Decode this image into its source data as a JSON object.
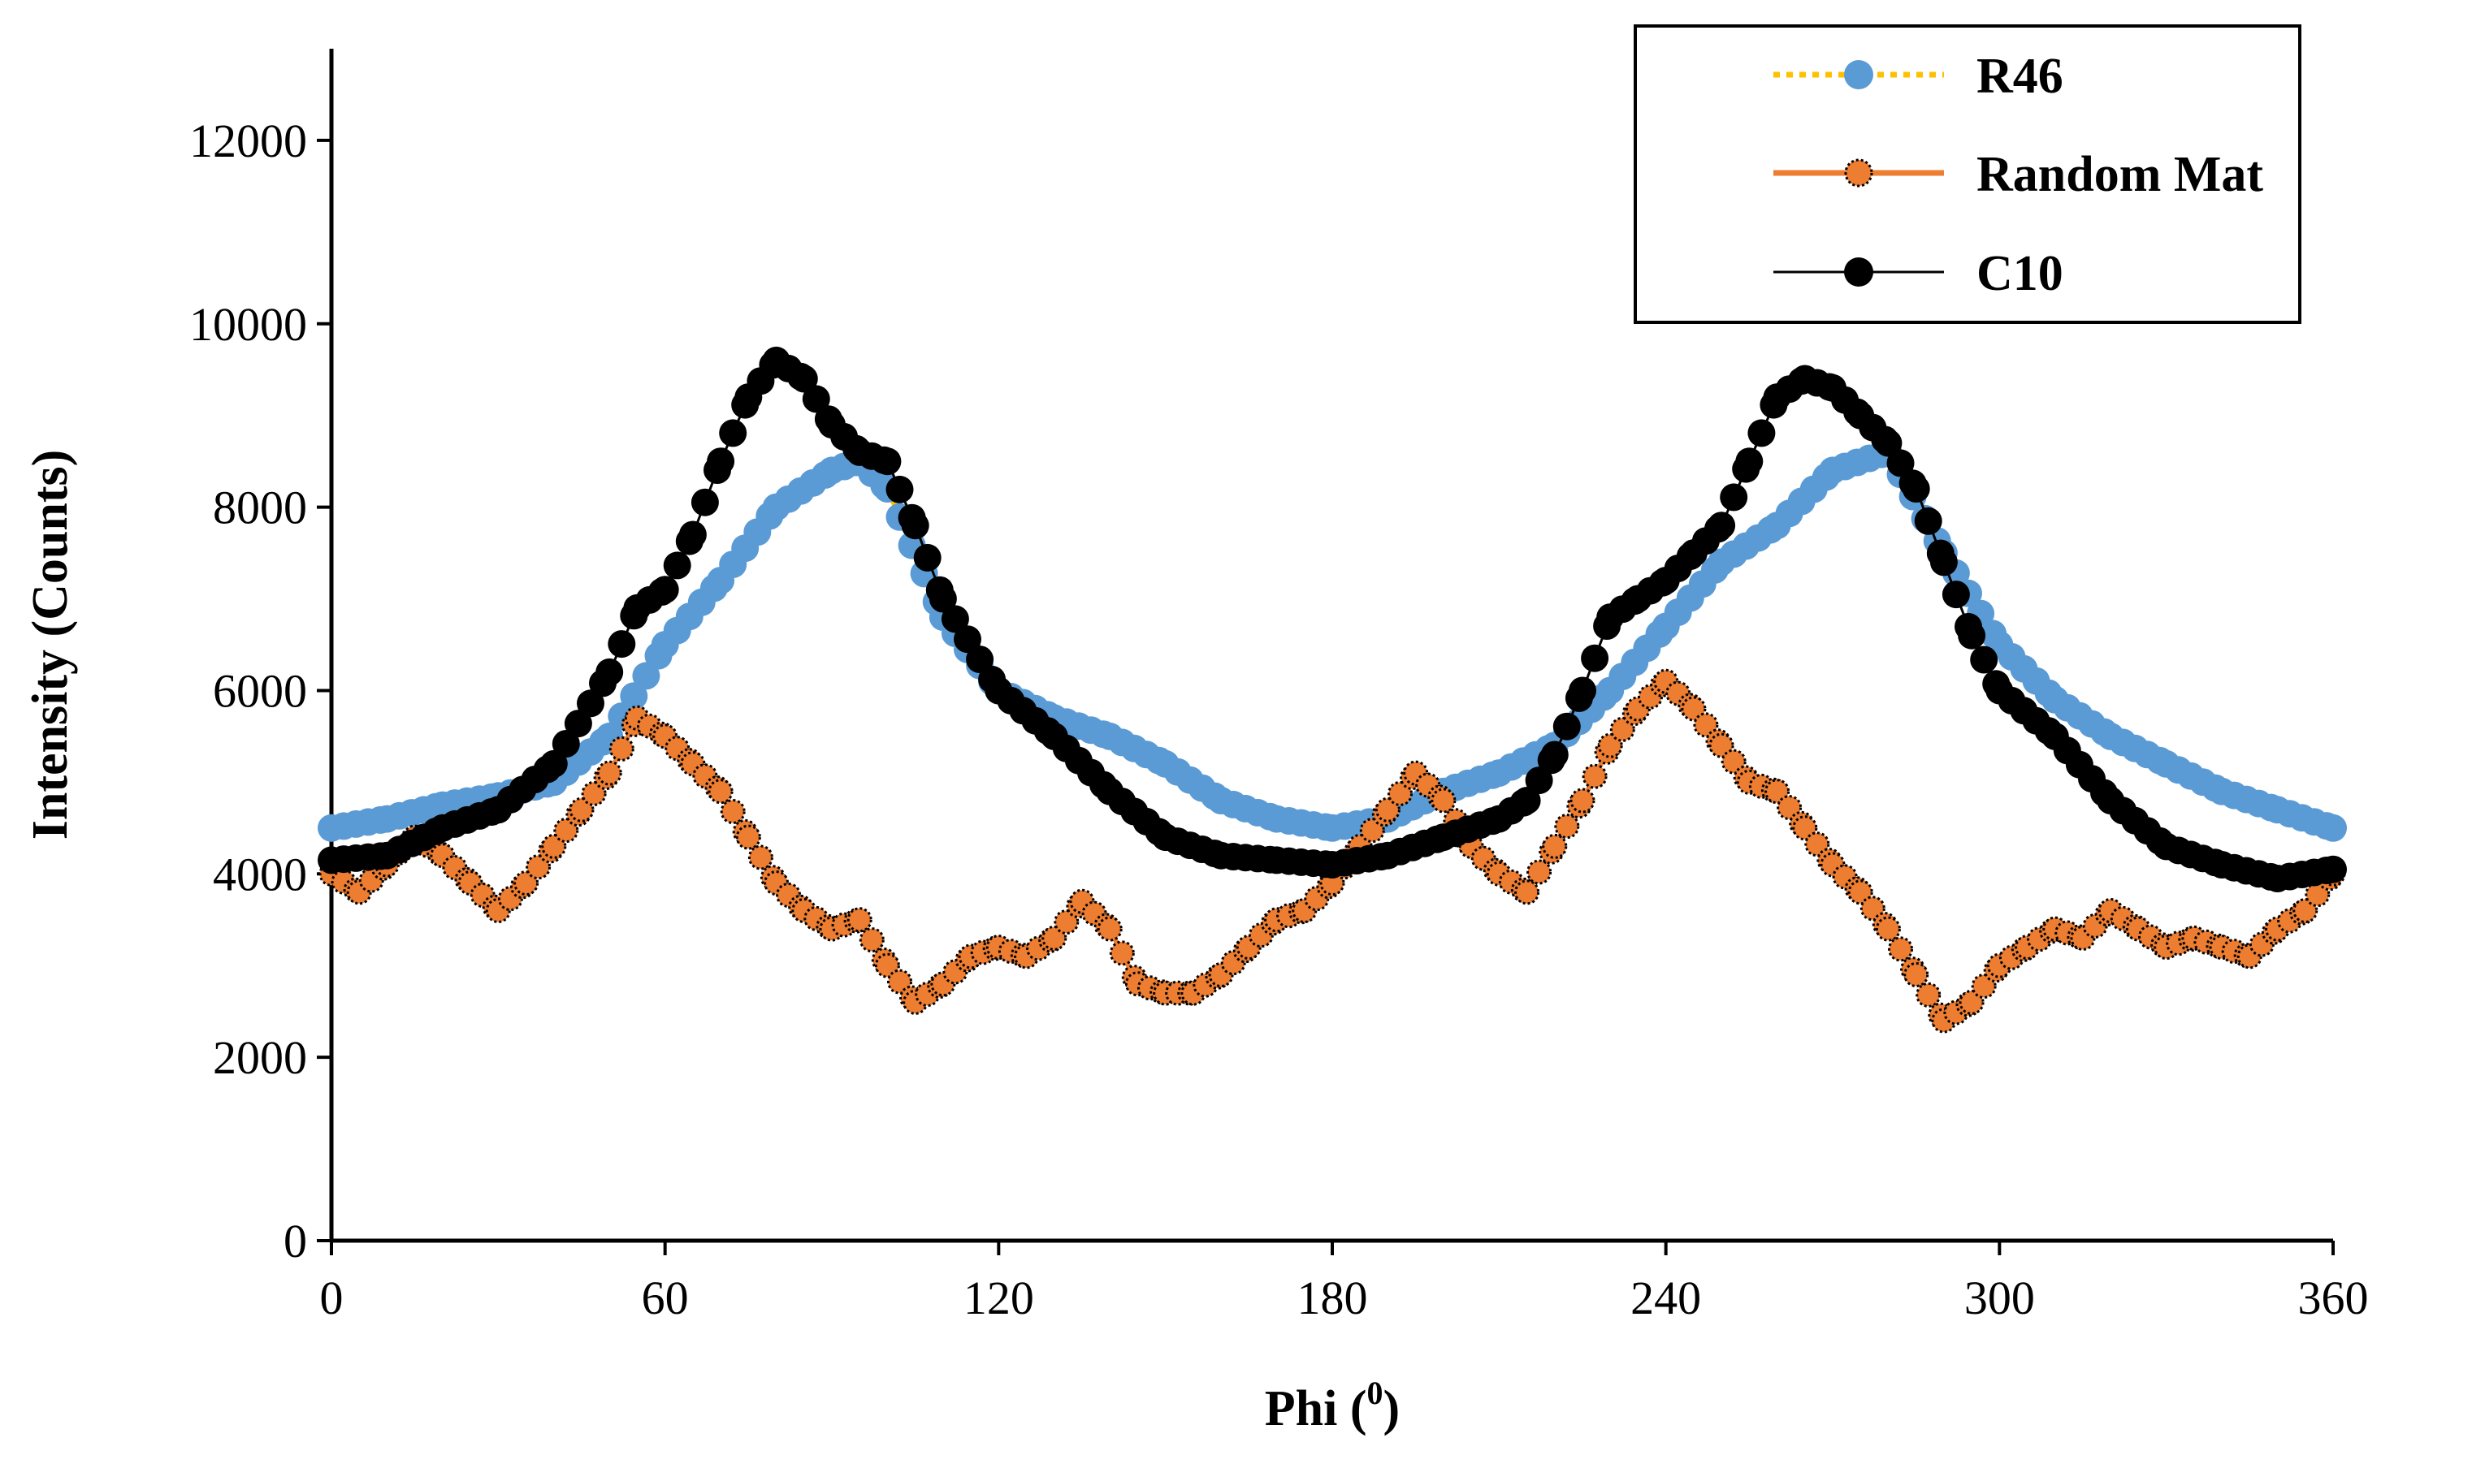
{
  "chart_data": {
    "type": "scatter",
    "title": "",
    "xlabel": "Phi (",
    "xlabel_sup": "0",
    "xlabel_end": ")",
    "ylabel": "Intensity (Counts)",
    "xlim": [
      0,
      360
    ],
    "ylim": [
      0,
      13000
    ],
    "xticks": [
      0,
      60,
      120,
      180,
      240,
      300,
      360
    ],
    "yticks": [
      0,
      2000,
      4000,
      6000,
      8000,
      10000,
      12000
    ],
    "xtick_labels": [
      "0",
      "60",
      "120",
      "180",
      "240",
      "300",
      "360"
    ],
    "ytick_labels": [
      "0",
      "2000",
      "4000",
      "6000",
      "8000",
      "10000",
      "12000"
    ],
    "grid": false,
    "legend_position": "top-right",
    "series": [
      {
        "name": "R46",
        "marker_color": "#5B9BD5",
        "line_color": "#FFC000",
        "line_style": "dotted",
        "marker_edge": "#5B9BD5",
        "x": [
          0,
          10,
          20,
          30,
          40,
          50,
          60,
          70,
          80,
          90,
          95,
          100,
          110,
          120,
          130,
          140,
          150,
          160,
          170,
          180,
          190,
          200,
          210,
          220,
          230,
          240,
          250,
          260,
          270,
          280,
          290,
          300,
          310,
          320,
          330,
          340,
          350,
          360
        ],
        "y": [
          4500,
          4600,
          4750,
          4850,
          5000,
          5500,
          6500,
          7200,
          8000,
          8400,
          8500,
          8200,
          6800,
          6000,
          5700,
          5500,
          5200,
          4800,
          4600,
          4500,
          4600,
          4900,
          5100,
          5400,
          6000,
          6700,
          7400,
          7800,
          8400,
          8600,
          7500,
          6500,
          5900,
          5500,
          5200,
          4900,
          4700,
          4500
        ]
      },
      {
        "name": "Random Mat",
        "marker_color": "#ED7D31",
        "line_color": "#ED7D31",
        "line_style": "solid",
        "marker_edge": "#000000",
        "x": [
          0,
          5,
          10,
          15,
          20,
          25,
          30,
          35,
          40,
          45,
          50,
          55,
          60,
          65,
          70,
          75,
          80,
          85,
          90,
          95,
          100,
          105,
          110,
          115,
          120,
          125,
          130,
          135,
          140,
          145,
          150,
          155,
          160,
          165,
          170,
          175,
          180,
          185,
          190,
          195,
          200,
          205,
          210,
          215,
          220,
          225,
          230,
          235,
          240,
          245,
          250,
          255,
          260,
          265,
          270,
          275,
          280,
          285,
          290,
          295,
          300,
          305,
          310,
          315,
          320,
          325,
          330,
          335,
          340,
          345,
          350,
          355,
          360
        ],
        "y": [
          4000,
          3800,
          4100,
          4400,
          4200,
          3900,
          3600,
          3900,
          4300,
          4700,
          5100,
          5700,
          5500,
          5200,
          4900,
          4400,
          3900,
          3600,
          3400,
          3500,
          3000,
          2600,
          2800,
          3100,
          3200,
          3100,
          3300,
          3700,
          3400,
          2800,
          2700,
          2700,
          2900,
          3200,
          3500,
          3600,
          3900,
          4300,
          4700,
          5100,
          4800,
          4300,
          4000,
          3800,
          4300,
          4800,
          5400,
          5800,
          6100,
          5800,
          5400,
          5000,
          4900,
          4500,
          4100,
          3800,
          3400,
          2900,
          2400,
          2600,
          3000,
          3200,
          3400,
          3300,
          3600,
          3400,
          3200,
          3300,
          3200,
          3100,
          3400,
          3600,
          4000
        ]
      },
      {
        "name": "C10",
        "marker_color": "#000000",
        "line_color": "#000000",
        "line_style": "solid",
        "marker_edge": "#000000",
        "x": [
          0,
          10,
          20,
          30,
          40,
          50,
          55,
          60,
          65,
          70,
          75,
          80,
          85,
          90,
          95,
          100,
          105,
          110,
          120,
          130,
          140,
          150,
          160,
          170,
          180,
          190,
          200,
          210,
          215,
          220,
          225,
          230,
          235,
          240,
          245,
          250,
          255,
          260,
          265,
          270,
          275,
          280,
          285,
          290,
          295,
          300,
          310,
          320,
          330,
          340,
          350,
          360
        ],
        "y": [
          4150,
          4200,
          4500,
          4700,
          5200,
          6200,
          6900,
          7100,
          7700,
          8500,
          9200,
          9600,
          9400,
          8900,
          8600,
          8500,
          7800,
          7000,
          6000,
          5500,
          4900,
          4400,
          4200,
          4150,
          4100,
          4200,
          4400,
          4600,
          4800,
          5300,
          6000,
          6800,
          7000,
          7200,
          7500,
          7800,
          8500,
          9200,
          9400,
          9300,
          9000,
          8700,
          8200,
          7400,
          6600,
          6000,
          5500,
          4800,
          4300,
          4100,
          3950,
          4050
        ]
      }
    ]
  }
}
